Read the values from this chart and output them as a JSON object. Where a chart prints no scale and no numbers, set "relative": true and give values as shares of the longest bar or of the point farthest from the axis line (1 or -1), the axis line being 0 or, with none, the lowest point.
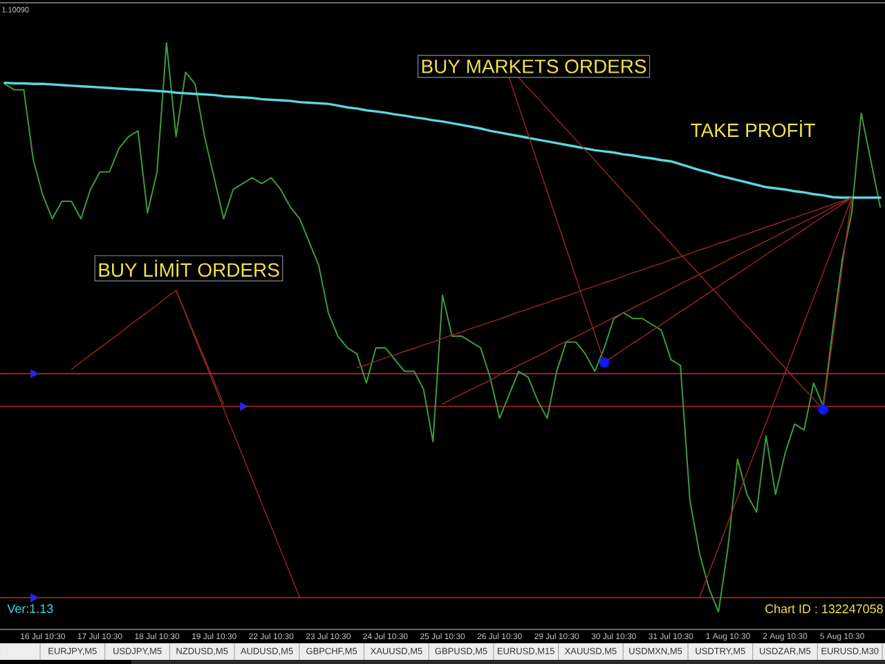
{
  "chart_data": {
    "type": "line",
    "relative": true,
    "categories": [
      null,
      null,
      null,
      null,
      "16 Jul 10:30",
      null,
      null,
      null,
      null,
      null,
      "17 Jul 10:30",
      null,
      null,
      null,
      null,
      null,
      "18 Jul 10:30",
      null,
      null,
      null,
      null,
      null,
      "19 Jul 10:30",
      null,
      null,
      null,
      null,
      null,
      "22 Jul 10:30",
      null,
      null,
      null,
      null,
      null,
      "23 Jul 10:30",
      null,
      null,
      null,
      null,
      null,
      "24 Jul 10:30",
      null,
      null,
      null,
      null,
      null,
      "25 Jul 10:30",
      null,
      null,
      null,
      null,
      null,
      "26 Jul 10:30",
      null,
      null,
      null,
      null,
      null,
      "29 Jul 10:30",
      null,
      null,
      null,
      null,
      null,
      "30 Jul 10:30",
      null,
      null,
      null,
      null,
      null,
      "31 Jul 10:30",
      null,
      null,
      null,
      null,
      null,
      "1 Aug 10:30",
      null,
      null,
      null,
      null,
      null,
      "2 Aug 10:30",
      null,
      null,
      null,
      null,
      null,
      "5 Aug 10:30",
      null,
      null,
      null,
      null
    ],
    "series": [
      {
        "color": "#3c9c3c",
        "values": [
          0.93,
          0.92,
          0.92,
          0.8,
          0.74,
          0.7,
          0.73,
          0.73,
          0.7,
          0.75,
          0.78,
          0.78,
          0.82,
          0.84,
          0.85,
          0.71,
          0.78,
          1.0,
          0.84,
          0.95,
          0.93,
          0.84,
          0.77,
          0.7,
          0.75,
          0.76,
          0.77,
          0.76,
          0.77,
          0.75,
          0.72,
          0.7,
          0.66,
          0.62,
          0.54,
          0.5,
          0.48,
          0.47,
          0.42,
          0.48,
          0.48,
          0.46,
          0.44,
          0.44,
          0.41,
          0.32,
          0.57,
          0.5,
          0.5,
          0.49,
          0.48,
          0.43,
          0.36,
          0.4,
          0.44,
          0.43,
          0.39,
          0.36,
          0.44,
          0.49,
          0.49,
          0.47,
          0.44,
          0.48,
          0.53,
          0.54,
          0.53,
          0.53,
          0.52,
          0.51,
          0.46,
          0.45,
          0.22,
          0.13,
          0.07,
          0.03,
          0.14,
          0.29,
          0.23,
          0.2,
          0.33,
          0.23,
          0.3,
          0.35,
          0.34,
          0.42,
          0.38,
          0.51,
          0.63,
          0.71,
          0.88,
          0.8,
          0.72
        ]
      },
      {
        "color": "#5cd6df",
        "values": [
          0.932,
          0.931,
          0.931,
          0.93,
          0.93,
          0.929,
          0.928,
          0.927,
          0.926,
          0.925,
          0.924,
          0.923,
          0.922,
          0.921,
          0.92,
          0.919,
          0.918,
          0.917,
          0.915,
          0.914,
          0.913,
          0.912,
          0.911,
          0.909,
          0.908,
          0.907,
          0.906,
          0.904,
          0.903,
          0.902,
          0.901,
          0.899,
          0.898,
          0.897,
          0.896,
          0.893,
          0.89,
          0.888,
          0.885,
          0.883,
          0.881,
          0.878,
          0.876,
          0.873,
          0.871,
          0.868,
          0.866,
          0.863,
          0.86,
          0.857,
          0.854,
          0.85,
          0.847,
          0.844,
          0.841,
          0.838,
          0.835,
          0.832,
          0.829,
          0.826,
          0.823,
          0.82,
          0.817,
          0.815,
          0.813,
          0.81,
          0.808,
          0.805,
          0.803,
          0.8,
          0.798,
          0.793,
          0.788,
          0.783,
          0.779,
          0.774,
          0.77,
          0.766,
          0.762,
          0.758,
          0.754,
          0.752,
          0.75,
          0.747,
          0.745,
          0.742,
          0.74,
          0.737,
          0.736,
          0.736,
          0.736,
          0.736,
          0.736
        ]
      },
      {
        "color": "#a02525",
        "values": [
          null,
          null,
          null,
          null,
          null,
          null,
          null,
          0.443,
          0.456,
          0.468,
          0.48,
          0.492,
          0.504,
          0.517,
          0.529,
          0.541,
          0.553,
          0.566,
          0.578,
          null,
          null,
          null,
          null,
          null,
          null,
          null,
          null,
          null,
          null,
          null,
          null,
          null,
          null,
          null,
          null,
          null,
          null,
          null,
          null,
          null,
          null,
          null,
          null,
          null,
          null,
          null,
          null,
          null,
          null,
          null,
          null,
          null,
          null,
          null,
          null,
          null,
          null,
          null,
          null,
          null,
          null,
          null,
          null,
          null,
          null,
          null,
          null,
          null,
          null,
          null,
          null,
          null,
          null,
          null,
          null,
          null,
          null,
          null,
          null,
          null,
          null,
          null,
          null,
          null,
          null,
          null,
          null,
          null,
          null,
          null,
          null,
          null,
          null
        ]
      },
      {
        "color": "#a02525",
        "values": [
          null,
          null,
          null,
          null,
          null,
          null,
          null,
          null,
          null,
          null,
          null,
          null,
          null,
          null,
          null,
          null,
          null,
          null,
          0.578,
          0.539,
          0.5,
          0.462,
          0.423,
          0.384,
          null,
          null,
          null,
          null,
          null,
          null,
          null,
          null,
          null,
          null,
          null,
          null,
          null,
          null,
          null,
          null,
          null,
          null,
          null,
          null,
          null,
          null,
          null,
          null,
          null,
          null,
          null,
          null,
          null,
          null,
          null,
          null,
          null,
          null,
          null,
          null,
          null,
          null,
          null,
          null,
          null,
          null,
          null,
          null,
          null,
          null,
          null,
          null,
          null,
          null,
          null,
          null,
          null,
          null,
          null,
          null,
          null,
          null,
          null,
          null,
          null,
          null,
          null,
          null,
          null,
          null,
          null,
          null,
          null
        ]
      },
      {
        "color": "#a02525",
        "values": [
          null,
          null,
          null,
          null,
          null,
          null,
          null,
          null,
          null,
          null,
          null,
          null,
          null,
          null,
          null,
          null,
          null,
          null,
          0.578,
          0.538,
          0.497,
          0.457,
          0.417,
          0.376,
          0.336,
          0.296,
          0.256,
          0.215,
          0.175,
          0.135,
          0.095,
          0.054,
          null,
          null,
          null,
          null,
          null,
          null,
          null,
          null,
          null,
          null,
          null,
          null,
          null,
          null,
          null,
          null,
          null,
          null,
          null,
          null,
          null,
          null,
          null,
          null,
          null,
          null,
          null,
          null,
          null,
          null,
          null,
          null,
          null,
          null,
          null,
          null,
          null,
          null,
          null,
          null,
          null,
          null,
          null,
          null,
          null,
          null,
          null,
          null,
          null,
          null,
          null,
          null,
          null,
          null,
          null,
          null,
          null,
          null,
          null,
          null,
          null
        ]
      },
      {
        "color": "#a02525",
        "values": [
          null,
          null,
          null,
          null,
          null,
          null,
          null,
          null,
          null,
          null,
          null,
          null,
          null,
          null,
          null,
          null,
          null,
          null,
          null,
          null,
          null,
          null,
          null,
          null,
          null,
          null,
          null,
          null,
          null,
          null,
          null,
          null,
          null,
          null,
          null,
          null,
          null,
          null,
          null,
          null,
          null,
          null,
          null,
          null,
          null,
          null,
          null,
          null,
          null,
          null,
          null,
          null,
          null,
          0.941,
          0.892,
          0.844,
          0.795,
          0.747,
          0.698,
          0.65,
          0.601,
          0.552,
          0.504,
          0.455,
          null,
          null,
          null,
          null,
          null,
          null,
          null,
          null,
          null,
          null,
          null,
          null,
          null,
          null,
          null,
          null,
          null,
          null,
          null,
          null,
          null,
          null,
          null,
          null,
          null,
          null,
          null,
          null,
          null
        ]
      },
      {
        "color": "#a02525",
        "values": [
          null,
          null,
          null,
          null,
          null,
          null,
          null,
          null,
          null,
          null,
          null,
          null,
          null,
          null,
          null,
          null,
          null,
          null,
          null,
          null,
          null,
          null,
          null,
          null,
          null,
          null,
          null,
          null,
          null,
          null,
          null,
          null,
          null,
          null,
          null,
          null,
          null,
          null,
          null,
          null,
          null,
          null,
          null,
          null,
          null,
          null,
          null,
          null,
          null,
          null,
          null,
          null,
          null,
          null,
          0.941,
          0.923,
          0.906,
          0.888,
          0.87,
          0.853,
          0.835,
          0.817,
          0.8,
          0.782,
          0.764,
          0.746,
          0.729,
          0.711,
          0.693,
          0.676,
          0.658,
          0.64,
          0.623,
          0.605,
          0.587,
          0.57,
          0.552,
          0.534,
          0.517,
          0.499,
          0.481,
          0.463,
          0.446,
          0.428,
          0.41,
          0.393,
          0.375,
          null,
          null,
          null,
          null,
          null,
          null
        ]
      },
      {
        "color": "#a02525",
        "values": [
          null,
          null,
          null,
          null,
          null,
          null,
          null,
          null,
          null,
          null,
          null,
          null,
          null,
          null,
          null,
          null,
          null,
          null,
          null,
          null,
          null,
          null,
          null,
          null,
          null,
          null,
          null,
          null,
          null,
          null,
          null,
          null,
          null,
          null,
          null,
          null,
          null,
          0.446,
          0.451,
          0.457,
          0.463,
          0.468,
          0.474,
          0.479,
          0.485,
          0.49,
          0.496,
          0.502,
          0.507,
          0.513,
          0.518,
          0.524,
          0.529,
          0.535,
          0.541,
          0.546,
          0.552,
          0.557,
          0.563,
          0.568,
          0.574,
          0.58,
          0.585,
          0.591,
          0.596,
          0.602,
          0.608,
          0.613,
          0.619,
          0.624,
          0.63,
          0.635,
          0.641,
          0.647,
          0.652,
          0.658,
          0.663,
          0.669,
          0.674,
          0.68,
          0.686,
          0.691,
          0.697,
          0.702,
          0.708,
          0.713,
          0.719,
          0.725,
          0.73,
          0.736,
          null,
          null,
          null
        ]
      },
      {
        "color": "#a02525",
        "values": [
          null,
          null,
          null,
          null,
          null,
          null,
          null,
          null,
          null,
          null,
          null,
          null,
          null,
          null,
          null,
          null,
          null,
          null,
          null,
          null,
          null,
          null,
          null,
          null,
          null,
          null,
          null,
          null,
          null,
          null,
          null,
          null,
          null,
          null,
          null,
          null,
          null,
          null,
          null,
          null,
          null,
          null,
          null,
          null,
          null,
          null,
          0.384,
          0.393,
          0.401,
          0.409,
          0.417,
          0.425,
          0.434,
          0.442,
          0.45,
          0.458,
          0.466,
          0.474,
          0.483,
          0.491,
          0.499,
          0.507,
          0.515,
          0.523,
          0.532,
          0.54,
          0.548,
          0.556,
          0.564,
          0.572,
          0.581,
          0.589,
          0.597,
          0.605,
          0.613,
          0.621,
          0.63,
          0.638,
          0.646,
          0.654,
          0.662,
          0.67,
          0.679,
          0.687,
          0.695,
          0.703,
          0.711,
          0.72,
          0.728,
          0.736,
          null,
          null,
          null
        ]
      },
      {
        "color": "#a02525",
        "values": [
          null,
          null,
          null,
          null,
          null,
          null,
          null,
          null,
          null,
          null,
          null,
          null,
          null,
          null,
          null,
          null,
          null,
          null,
          null,
          null,
          null,
          null,
          null,
          null,
          null,
          null,
          null,
          null,
          null,
          null,
          null,
          null,
          null,
          null,
          null,
          null,
          null,
          null,
          null,
          null,
          null,
          null,
          null,
          null,
          null,
          null,
          null,
          null,
          null,
          null,
          null,
          null,
          null,
          null,
          null,
          null,
          null,
          null,
          null,
          null,
          null,
          null,
          null,
          0.455,
          0.466,
          0.477,
          0.488,
          0.498,
          0.509,
          0.52,
          0.531,
          0.542,
          0.552,
          0.563,
          0.574,
          0.585,
          0.596,
          0.606,
          0.617,
          0.628,
          0.639,
          0.65,
          0.66,
          0.671,
          0.682,
          0.693,
          0.704,
          0.714,
          0.725,
          0.736,
          null,
          null,
          null
        ]
      },
      {
        "color": "#a02525",
        "values": [
          null,
          null,
          null,
          null,
          null,
          null,
          null,
          null,
          null,
          null,
          null,
          null,
          null,
          null,
          null,
          null,
          null,
          null,
          null,
          null,
          null,
          null,
          null,
          null,
          null,
          null,
          null,
          null,
          null,
          null,
          null,
          null,
          null,
          null,
          null,
          null,
          null,
          null,
          null,
          null,
          null,
          null,
          null,
          null,
          null,
          null,
          null,
          null,
          null,
          null,
          null,
          null,
          null,
          null,
          null,
          null,
          null,
          null,
          null,
          null,
          null,
          null,
          null,
          null,
          null,
          null,
          null,
          null,
          null,
          null,
          null,
          null,
          null,
          null,
          null,
          null,
          null,
          null,
          null,
          null,
          null,
          null,
          null,
          null,
          null,
          null,
          0.375,
          0.495,
          0.616,
          0.736,
          null,
          null,
          null
        ]
      },
      {
        "color": "#a02525",
        "values": [
          null,
          null,
          null,
          null,
          null,
          null,
          null,
          null,
          null,
          null,
          null,
          null,
          null,
          null,
          null,
          null,
          null,
          null,
          null,
          null,
          null,
          null,
          null,
          null,
          null,
          null,
          null,
          null,
          null,
          null,
          null,
          null,
          null,
          null,
          null,
          null,
          null,
          null,
          null,
          null,
          null,
          null,
          null,
          null,
          null,
          null,
          null,
          null,
          null,
          null,
          null,
          null,
          null,
          null,
          null,
          null,
          null,
          null,
          null,
          null,
          null,
          null,
          null,
          null,
          null,
          null,
          null,
          null,
          null,
          null,
          null,
          null,
          null,
          0.054,
          0.097,
          0.139,
          0.182,
          0.225,
          0.267,
          0.31,
          0.352,
          0.395,
          0.438,
          0.48,
          0.523,
          0.565,
          0.608,
          0.651,
          0.693,
          0.736,
          null,
          null,
          null
        ]
      },
      {
        "type": "scatter",
        "marker": "triangle",
        "color": "#2828e0",
        "values": [
          null,
          null,
          null,
          0.436,
          null,
          null,
          null,
          null,
          null,
          null,
          null,
          null,
          null,
          null,
          null,
          null,
          null,
          null,
          null,
          null,
          null,
          null,
          null,
          null,
          null,
          0.38,
          null,
          null,
          null,
          null,
          null,
          null,
          null,
          null,
          null,
          null,
          null,
          null,
          null,
          null,
          null,
          null,
          null,
          null,
          null,
          null,
          null,
          null,
          null,
          null,
          null,
          null,
          null,
          null,
          null,
          null,
          null,
          null,
          null,
          null,
          null,
          null,
          null,
          null,
          null,
          null,
          null,
          null,
          null,
          null,
          null,
          null,
          null,
          null,
          null,
          null,
          null,
          null,
          null,
          null,
          null,
          null,
          null,
          null,
          null,
          null,
          null,
          null,
          null,
          null,
          null,
          null,
          null
        ]
      },
      {
        "type": "scatter",
        "marker": "triangle",
        "color": "#2828e0",
        "values": [
          null,
          null,
          null,
          0.054,
          null,
          null,
          null,
          null,
          null,
          null,
          null,
          null,
          null,
          null,
          null,
          null,
          null,
          null,
          null,
          null,
          null,
          null,
          null,
          null,
          null,
          null,
          null,
          null,
          null,
          null,
          null,
          null,
          null,
          null,
          null,
          null,
          null,
          null,
          null,
          null,
          null,
          null,
          null,
          null,
          null,
          null,
          null,
          null,
          null,
          null,
          null,
          null,
          null,
          null,
          null,
          null,
          null,
          null,
          null,
          null,
          null,
          null,
          null,
          null,
          null,
          null,
          null,
          null,
          null,
          null,
          null,
          null,
          null,
          null,
          null,
          null,
          null,
          null,
          null,
          null,
          null,
          null,
          null,
          null,
          null,
          null,
          null,
          null,
          null,
          null,
          null,
          null,
          null
        ]
      },
      {
        "type": "scatter",
        "marker": "circle",
        "color": "#1414ff",
        "values": [
          null,
          null,
          null,
          null,
          null,
          null,
          null,
          null,
          null,
          null,
          null,
          null,
          null,
          null,
          null,
          null,
          null,
          null,
          null,
          null,
          null,
          null,
          null,
          null,
          null,
          null,
          null,
          null,
          null,
          null,
          null,
          null,
          null,
          null,
          null,
          null,
          null,
          null,
          null,
          null,
          null,
          null,
          null,
          null,
          null,
          null,
          null,
          null,
          null,
          null,
          null,
          null,
          null,
          null,
          null,
          null,
          null,
          null,
          null,
          null,
          null,
          null,
          null,
          0.455,
          null,
          null,
          null,
          null,
          null,
          null,
          null,
          null,
          null,
          null,
          null,
          null,
          null,
          null,
          null,
          null,
          null,
          null,
          null,
          null,
          null,
          null,
          0.375,
          null,
          null,
          null,
          null,
          null,
          null
        ]
      }
    ],
    "ref_lines": [
      {
        "axis": "y",
        "value": 0.436,
        "color": "#a02525"
      },
      {
        "axis": "y",
        "value": 0.38,
        "color": "#a02525"
      },
      {
        "axis": "y",
        "value": 0.054,
        "color": "#a02525"
      }
    ],
    "annotations": [
      "BUY LİMİT ORDERS",
      "BUY MARKETS ORDERS",
      "TAKE PROFİT",
      "Ver:1.13",
      "Chart ID : 132247058",
      "1.10090",
      "EURJPY,M5",
      "USDJPY,M5",
      "NZDUSD,M5",
      "AUDUSD,M5",
      "GBPCHF,M5",
      "XAUUSD,M5",
      "GBPUSD,M5",
      "EURUSD,M15",
      "XAUUSD,M5",
      "USDMXN,M5",
      "USDTRY,M5",
      "USDZAR,M5",
      "EURUSD,M30"
    ]
  }
}
